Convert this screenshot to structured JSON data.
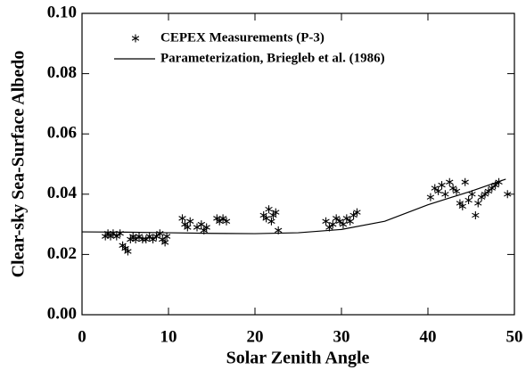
{
  "chart_data": {
    "type": "scatter",
    "x_label": "Solar Zenith Angle",
    "y_label": "Clear-sky Sea-Surface Albedo",
    "xlim": [
      0,
      50
    ],
    "xticks": [
      0,
      10,
      20,
      30,
      40,
      50
    ],
    "ylim": [
      0,
      0.1
    ],
    "yticks": [
      {
        "value": 0,
        "label": "0.00"
      },
      {
        "value": 0.02,
        "label": "0.02"
      },
      {
        "value": 0.04,
        "label": "0.04"
      },
      {
        "value": 0.06,
        "label": "0.06"
      },
      {
        "value": 0.08,
        "label": "0.08"
      },
      {
        "value": 0.1,
        "label": "0.10"
      }
    ],
    "legend": "upper left",
    "series": [
      {
        "name": "CEPEX Measurements (P-3)",
        "type": "scatter",
        "marker": "asterisk",
        "color": "#000000",
        "x": [
          2.7,
          3.0,
          3.3,
          3.6,
          4.0,
          4.4,
          4.7,
          5.0,
          5.3,
          5.6,
          5.9,
          6.2,
          6.6,
          7.0,
          7.4,
          7.8,
          8.2,
          8.6,
          9.0,
          9.3,
          9.6,
          9.8,
          11.6,
          11.9,
          12.2,
          12.5,
          13.3,
          13.8,
          14.1,
          14.4,
          15.6,
          15.9,
          16.3,
          16.7,
          21.0,
          21.3,
          21.6,
          21.9,
          22.1,
          22.4,
          22.7,
          28.2,
          28.6,
          29.0,
          29.4,
          29.8,
          30.2,
          30.6,
          31.0,
          31.4,
          31.8,
          40.3,
          40.8,
          41.2,
          41.6,
          42.0,
          42.5,
          42.9,
          43.3,
          43.7,
          44.0,
          44.3,
          44.7,
          45.1,
          45.5,
          45.8,
          46.2,
          46.6,
          47.0,
          47.4,
          47.8,
          48.2,
          49.2
        ],
        "values": [
          0.026,
          0.027,
          0.026,
          0.027,
          0.026,
          0.027,
          0.023,
          0.022,
          0.021,
          0.025,
          0.026,
          0.025,
          0.026,
          0.025,
          0.025,
          0.026,
          0.025,
          0.026,
          0.027,
          0.025,
          0.024,
          0.026,
          0.032,
          0.03,
          0.029,
          0.031,
          0.029,
          0.03,
          0.028,
          0.029,
          0.032,
          0.031,
          0.032,
          0.031,
          0.033,
          0.032,
          0.035,
          0.031,
          0.033,
          0.034,
          0.028,
          0.031,
          0.029,
          0.03,
          0.032,
          0.031,
          0.03,
          0.032,
          0.031,
          0.033,
          0.034,
          0.039,
          0.042,
          0.041,
          0.043,
          0.04,
          0.044,
          0.042,
          0.041,
          0.037,
          0.036,
          0.044,
          0.038,
          0.04,
          0.033,
          0.037,
          0.039,
          0.04,
          0.041,
          0.042,
          0.043,
          0.044,
          0.04
        ]
      },
      {
        "name": "Parameterization, Briegleb et al. (1986)",
        "type": "line",
        "color": "#000000",
        "x": [
          0,
          5,
          10,
          15,
          20,
          25,
          30,
          35,
          40,
          45,
          49
        ],
        "values": [
          0.0275,
          0.0274,
          0.0272,
          0.027,
          0.0269,
          0.0272,
          0.0283,
          0.031,
          0.0365,
          0.041,
          0.045
        ]
      }
    ]
  }
}
